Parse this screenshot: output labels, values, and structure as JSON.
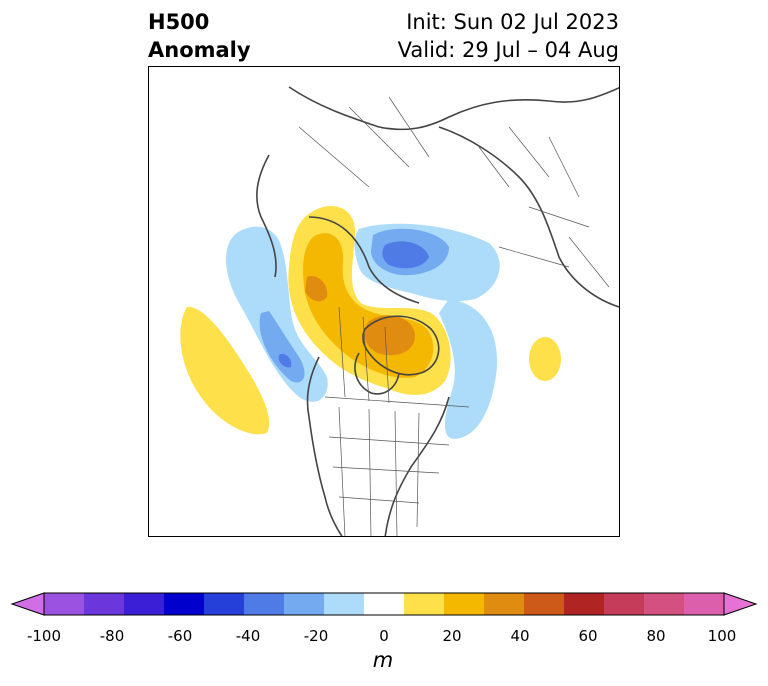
{
  "header": {
    "title_line1": "H500",
    "title_line2": "Anomaly",
    "init_text": "Init: Sun 02 Jul 2023",
    "valid_text": "Valid: 29 Jul – 04 Aug"
  },
  "map": {
    "projection": "polar stereographic, North America / Arctic",
    "basemap_color": "#444444"
  },
  "colorbar": {
    "unit": "m",
    "ticks": [
      "-100",
      "-80",
      "-60",
      "-40",
      "-20",
      "0",
      "20",
      "40",
      "60",
      "80",
      "100"
    ],
    "levels": [
      -100,
      -90,
      -80,
      -70,
      -60,
      -50,
      -40,
      -30,
      -20,
      -10,
      10,
      20,
      30,
      40,
      50,
      60,
      70,
      80,
      90,
      100
    ],
    "colors": [
      "#d16ee6",
      "#9c52e0",
      "#6b36dc",
      "#3a1fd6",
      "#0000cc",
      "#2440d8",
      "#4f7be6",
      "#74aaf0",
      "#acdcfa",
      "#ffffff",
      "#fee04a",
      "#f5b800",
      "#e08c10",
      "#cd5a18",
      "#b02424",
      "#c43c5a",
      "#d45080",
      "#dc5fac",
      "#e672d6"
    ],
    "extend": "both"
  }
}
